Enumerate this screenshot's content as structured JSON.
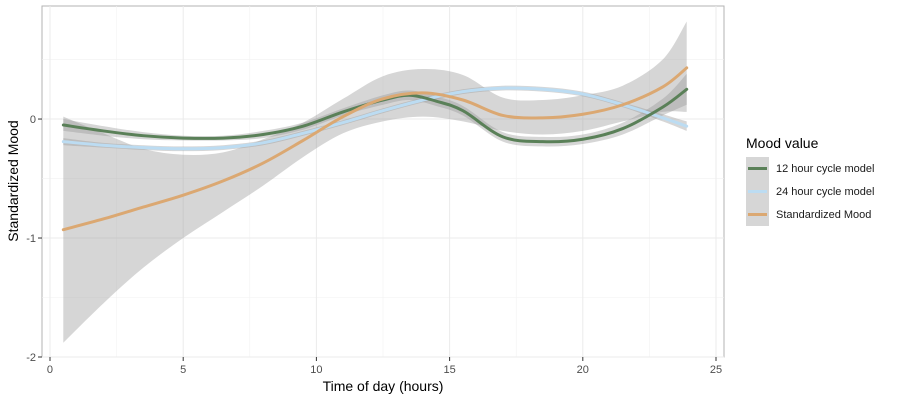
{
  "chart_data": {
    "type": "line",
    "xlabel": "Time of day (hours)",
    "ylabel": "Standardized Mood",
    "xlim": [
      -0.3,
      25.3
    ],
    "ylim": [
      -2,
      0.95
    ],
    "x_ticks": [
      0,
      5,
      10,
      15,
      20,
      25
    ],
    "y_ticks": [
      -2,
      -1,
      0
    ],
    "grid": true,
    "legend": {
      "title": "Mood value",
      "placement": "right"
    },
    "series": [
      {
        "name": "12 hour cycle model",
        "color": "#5a8058",
        "x": [
          0.5,
          2,
          3.5,
          5,
          6.5,
          8,
          9.5,
          11,
          12.5,
          13.5,
          14.5,
          15.5,
          17,
          18.5,
          20,
          21.5,
          23,
          23.9
        ],
        "y": [
          -0.05,
          -0.1,
          -0.14,
          -0.16,
          -0.16,
          -0.13,
          -0.06,
          0.06,
          0.16,
          0.2,
          0.15,
          0.07,
          -0.15,
          -0.19,
          -0.17,
          -0.08,
          0.1,
          0.25
        ],
        "band_lower": [
          -0.1,
          -0.14,
          -0.17,
          -0.18,
          -0.18,
          -0.16,
          -0.09,
          0.03,
          0.12,
          0.16,
          0.11,
          0.03,
          -0.19,
          -0.23,
          -0.21,
          -0.13,
          0.03,
          0.12
        ],
        "band_upper": [
          0.0,
          -0.06,
          -0.11,
          -0.14,
          -0.14,
          -0.1,
          -0.03,
          0.09,
          0.2,
          0.24,
          0.19,
          0.11,
          -0.11,
          -0.15,
          -0.13,
          -0.03,
          0.17,
          0.38
        ]
      },
      {
        "name": "24 hour cycle model",
        "color": "#bcdcf2",
        "x": [
          0.5,
          2,
          3.5,
          5,
          6.5,
          8,
          9.5,
          11,
          12.5,
          14,
          15.5,
          17,
          18.5,
          20,
          21.5,
          23,
          23.9
        ],
        "y": [
          -0.19,
          -0.22,
          -0.24,
          -0.25,
          -0.24,
          -0.2,
          -0.12,
          -0.03,
          0.07,
          0.16,
          0.23,
          0.26,
          0.25,
          0.21,
          0.12,
          0.01,
          -0.06
        ],
        "band_lower": [
          -0.22,
          -0.24,
          -0.26,
          -0.27,
          -0.26,
          -0.22,
          -0.14,
          -0.05,
          0.05,
          0.14,
          0.21,
          0.24,
          0.23,
          0.19,
          0.1,
          -0.02,
          -0.1
        ],
        "band_upper": [
          -0.16,
          -0.2,
          -0.22,
          -0.23,
          -0.22,
          -0.18,
          -0.1,
          -0.01,
          0.09,
          0.18,
          0.25,
          0.28,
          0.27,
          0.23,
          0.14,
          0.04,
          -0.02
        ]
      },
      {
        "name": "Standardized Mood",
        "color": "#dba872",
        "x": [
          0.5,
          2,
          3.5,
          5,
          6.5,
          8,
          9.5,
          11,
          12.5,
          14,
          15.5,
          17,
          18.5,
          20,
          21.5,
          23,
          23.9
        ],
        "y": [
          -0.93,
          -0.84,
          -0.74,
          -0.64,
          -0.52,
          -0.37,
          -0.18,
          0.02,
          0.17,
          0.22,
          0.16,
          0.03,
          0.01,
          0.04,
          0.12,
          0.27,
          0.43
        ],
        "band_lower": [
          -1.88,
          -1.55,
          -1.25,
          -1.0,
          -0.78,
          -0.56,
          -0.32,
          -0.12,
          -0.02,
          0.02,
          -0.02,
          -0.1,
          -0.13,
          -0.1,
          -0.02,
          0.06,
          0.06
        ],
        "band_upper": [
          0.02,
          -0.12,
          -0.25,
          -0.3,
          -0.28,
          -0.17,
          -0.03,
          0.17,
          0.36,
          0.42,
          0.37,
          0.18,
          0.16,
          0.2,
          0.28,
          0.5,
          0.82
        ]
      }
    ]
  }
}
